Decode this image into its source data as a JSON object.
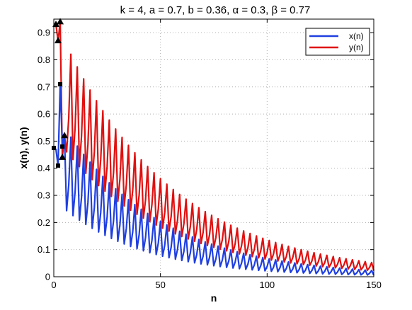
{
  "chart_data": {
    "type": "line",
    "title": "k = 4, a = 0.7, b = 0.36, α = 0.3, β = 0.77",
    "xlabel": "n",
    "ylabel": "x(n),  y(n)",
    "xlim": [
      0,
      150
    ],
    "ylim": [
      0,
      0.95
    ],
    "xticks": [
      "0",
      "50",
      "100",
      "150"
    ],
    "yticks": [
      "0",
      "0.1",
      "0.2",
      "0.3",
      "0.4",
      "0.5",
      "0.6",
      "0.7",
      "0.8",
      "0.9"
    ],
    "grid": true,
    "legend_position": "top-right",
    "series": [
      {
        "name": "x(n)",
        "color": "#1f3fe0",
        "model": {
          "start_n": 5,
          "end_n": 150,
          "period": 3,
          "upper_start": 0.55,
          "upper_decay": 0.022,
          "lower_start": 0.25,
          "lower_decay": 0.026
        },
        "points": [
          [
            0,
            0.475
          ],
          [
            1,
            0.47
          ],
          [
            2,
            0.41
          ],
          [
            3,
            0.71
          ],
          [
            4,
            0.48
          ],
          [
            5,
            0.52
          ]
        ],
        "markers": {
          "shape": "square",
          "points": [
            [
              0,
              0.475
            ],
            [
              2,
              0.41
            ],
            [
              3,
              0.71
            ],
            [
              4,
              0.48
            ]
          ]
        }
      },
      {
        "name": "y(n)",
        "color": "#e01010",
        "model": {
          "start_n": 5,
          "end_n": 150,
          "period": 3,
          "upper_start": 0.87,
          "upper_decay": 0.0195,
          "lower_start": 0.47,
          "lower_decay": 0.021
        },
        "points": [
          [
            0,
            0.925
          ],
          [
            1,
            0.93
          ],
          [
            2,
            0.87
          ],
          [
            3,
            0.94
          ],
          [
            4,
            0.44
          ],
          [
            5,
            0.52
          ]
        ],
        "markers": {
          "shape": "triangle",
          "points": [
            [
              1,
              0.93
            ],
            [
              2,
              0.87
            ],
            [
              3,
              0.94
            ],
            [
              4,
              0.44
            ],
            [
              5,
              0.52
            ]
          ]
        }
      }
    ]
  }
}
